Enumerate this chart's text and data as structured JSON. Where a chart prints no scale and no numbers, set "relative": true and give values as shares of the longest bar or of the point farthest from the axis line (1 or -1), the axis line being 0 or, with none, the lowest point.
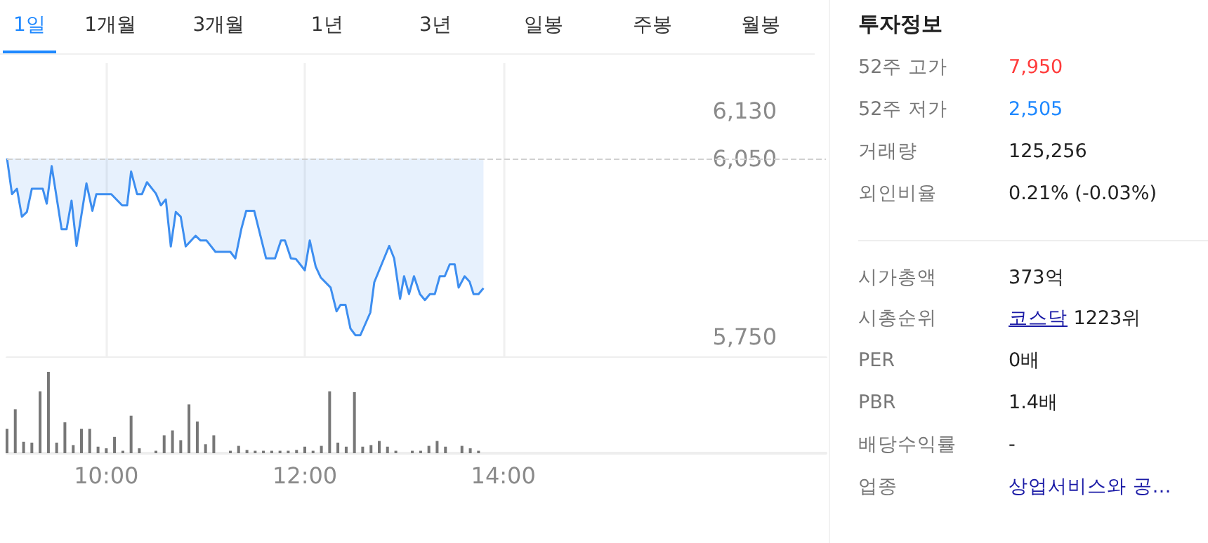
{
  "chart_data": [
    {
      "type": "line",
      "annotations": [
        "1일",
        "1개월",
        "3개월",
        "1년",
        "3년",
        "일봉",
        "주봉",
        "월봉"
      ],
      "x": [
        9.0,
        9.05,
        9.1,
        9.15,
        9.2,
        9.25,
        9.36,
        9.4,
        9.45,
        9.55,
        9.6,
        9.65,
        9.7,
        9.8,
        9.86,
        9.9,
        10.05,
        10.16,
        10.21,
        10.25,
        10.31,
        10.36,
        10.41,
        10.5,
        10.55,
        10.6,
        10.65,
        10.7,
        10.75,
        10.8,
        10.9,
        10.95,
        11.01,
        11.1,
        11.25,
        11.3,
        11.36,
        11.41,
        11.49,
        11.61,
        11.7,
        11.76,
        11.8,
        11.86,
        11.91,
        12.0,
        12.05,
        12.11,
        12.16,
        12.26,
        12.32,
        12.36,
        12.41,
        12.46,
        12.51,
        12.56,
        12.66,
        12.7,
        12.85,
        12.9,
        12.96,
        13.0,
        13.05,
        13.1,
        13.16,
        13.21,
        13.26,
        13.31,
        13.36,
        13.41,
        13.46,
        13.51,
        13.55,
        13.61,
        13.66,
        13.7,
        13.75,
        13.8
      ],
      "series": [
        {
          "color": "#3d8ef0",
          "values": [
            6050,
            5990,
            5999,
            5952,
            5960,
            5999,
            5999,
            5974,
            6037,
            5931,
            5931,
            5979,
            5903,
            6008,
            5962,
            5990,
            5990,
            5971,
            5971,
            6028,
            5990,
            5990,
            6010,
            5991,
            5971,
            5981,
            5902,
            5960,
            5952,
            5902,
            5920,
            5912,
            5912,
            5893,
            5893,
            5882,
            5931,
            5962,
            5962,
            5882,
            5882,
            5912,
            5912,
            5882,
            5881,
            5862,
            5912,
            5868,
            5850,
            5833,
            5793,
            5804,
            5804,
            5764,
            5753,
            5753,
            5791,
            5842,
            5903,
            5882,
            5814,
            5852,
            5822,
            5852,
            5822,
            5812,
            5822,
            5822,
            5852,
            5852,
            5872,
            5872,
            5833,
            5852,
            5843,
            5822,
            5822,
            5832
          ],
          "lower": [
            6050,
            5990,
            5999,
            5952,
            5960,
            5999,
            5999,
            5974,
            6037,
            5931,
            5931,
            5979,
            5903,
            6008,
            5962,
            5990,
            5990,
            5971,
            5971,
            6028,
            5990,
            5990,
            6010,
            5991,
            5971,
            5981,
            5902,
            5960,
            5952,
            5902,
            5920,
            5912,
            5912,
            5893,
            5893,
            5882,
            5931,
            5962,
            5962,
            5882,
            5882,
            5912,
            5912,
            5882,
            5881,
            5862,
            5912,
            5868,
            5850,
            5833,
            5793,
            5804,
            5804,
            5764,
            5753,
            5753,
            5791,
            5842,
            5903,
            5882,
            5814,
            5852,
            5822,
            5852,
            5822,
            5812,
            5822,
            5822,
            5852,
            5852,
            5872,
            5872,
            5833,
            5852,
            5843,
            5822,
            5822,
            5832
          ],
          "upper": [
            6050,
            6050,
            6050,
            6050,
            6050,
            6050,
            6050,
            6050,
            6050,
            6050,
            6050,
            6050,
            6050,
            6050,
            6050,
            6050,
            6050,
            6050,
            6050,
            6050,
            6050,
            6050,
            6050,
            6050,
            6050,
            6050,
            6050,
            6050,
            6050,
            6050,
            6050,
            6050,
            6050,
            6050,
            6050,
            6050,
            6050,
            6050,
            6050,
            6050,
            6050,
            6050,
            6050,
            6050,
            6050,
            6050,
            6050,
            6050,
            6050,
            6050,
            6050,
            6050,
            6050,
            6050,
            6050,
            6050,
            6050,
            6050,
            6050,
            6050,
            6050,
            6050,
            6050,
            6050,
            6050,
            6050,
            6050,
            6050,
            6050,
            6050,
            6050,
            6050,
            6050,
            6050,
            6050,
            6050,
            6050,
            6050
          ]
        }
      ],
      "xlim": [
        9,
        17.25
      ],
      "xticks": [
        {
          "value": 10,
          "label": null
        },
        {
          "value": 12,
          "label": null
        },
        {
          "value": 14,
          "label": null
        }
      ],
      "ylim": [
        5715,
        6210
      ],
      "yticks": [
        {
          "value": 5750,
          "label": "5,750"
        },
        {
          "value": 6050,
          "label": "6,050"
        },
        {
          "value": 6130,
          "label": "6,130"
        }
      ],
      "ref_lines": [
        {
          "axis": "y",
          "value": 6050,
          "color": "#d0d0d0",
          "line_style": "dashed"
        }
      ],
      "grid": "x",
      "tick_labels": "y"
    },
    {
      "type": "bar",
      "relative": true,
      "x": [
        9.0,
        9.083,
        9.167,
        9.25,
        9.333,
        9.417,
        9.5,
        9.583,
        9.667,
        9.75,
        9.833,
        9.917,
        10.0,
        10.083,
        10.167,
        10.25,
        10.333,
        10.5,
        10.583,
        10.667,
        10.75,
        10.833,
        10.917,
        11.0,
        11.083,
        11.25,
        11.333,
        11.417,
        11.5,
        11.583,
        11.667,
        11.75,
        11.833,
        11.917,
        12.0,
        12.083,
        12.167,
        12.25,
        12.333,
        12.417,
        12.5,
        12.583,
        12.667,
        12.75,
        12.833,
        12.917,
        13.083,
        13.167,
        13.25,
        13.333,
        13.417,
        13.583,
        13.667,
        13.75
      ],
      "values": [
        0.3,
        0.54,
        0.14,
        0.13,
        0.76,
        1.0,
        0.13,
        0.38,
        0.1,
        0.3,
        0.3,
        0.08,
        0.06,
        0.2,
        0.03,
        0.46,
        0.06,
        0.03,
        0.22,
        0.28,
        0.16,
        0.6,
        0.39,
        0.11,
        0.22,
        0.03,
        0.09,
        0.04,
        0.03,
        0.03,
        0.03,
        0.03,
        0.03,
        0.04,
        0.08,
        0.03,
        0.09,
        0.76,
        0.13,
        0.08,
        0.75,
        0.08,
        0.1,
        0.15,
        0.08,
        0.03,
        0.03,
        0.03,
        0.09,
        0.15,
        0.08,
        0.09,
        0.06,
        0.03
      ],
      "color": "#777777",
      "xlim": [
        9,
        17.25
      ],
      "xticks": [
        {
          "value": 10,
          "label": "10:00"
        },
        {
          "value": 12,
          "label": "12:00"
        },
        {
          "value": 14,
          "label": "14:00"
        }
      ],
      "tick_labels": "x"
    },
    {
      "type": "other",
      "title": "투자정보",
      "annotations": [
        "52주 고가",
        "7,950",
        "52주 저가",
        "2,505",
        "거래량",
        "125,256",
        "외인비율",
        "0.21% (-0.03%)",
        "시가총액",
        "373억",
        "시총순위",
        "코스닥 1223위",
        "PER",
        "0배",
        "PBR",
        "1.4배",
        "배당수익률",
        "-",
        "업종",
        "상업서비스와 공…"
      ]
    }
  ]
}
